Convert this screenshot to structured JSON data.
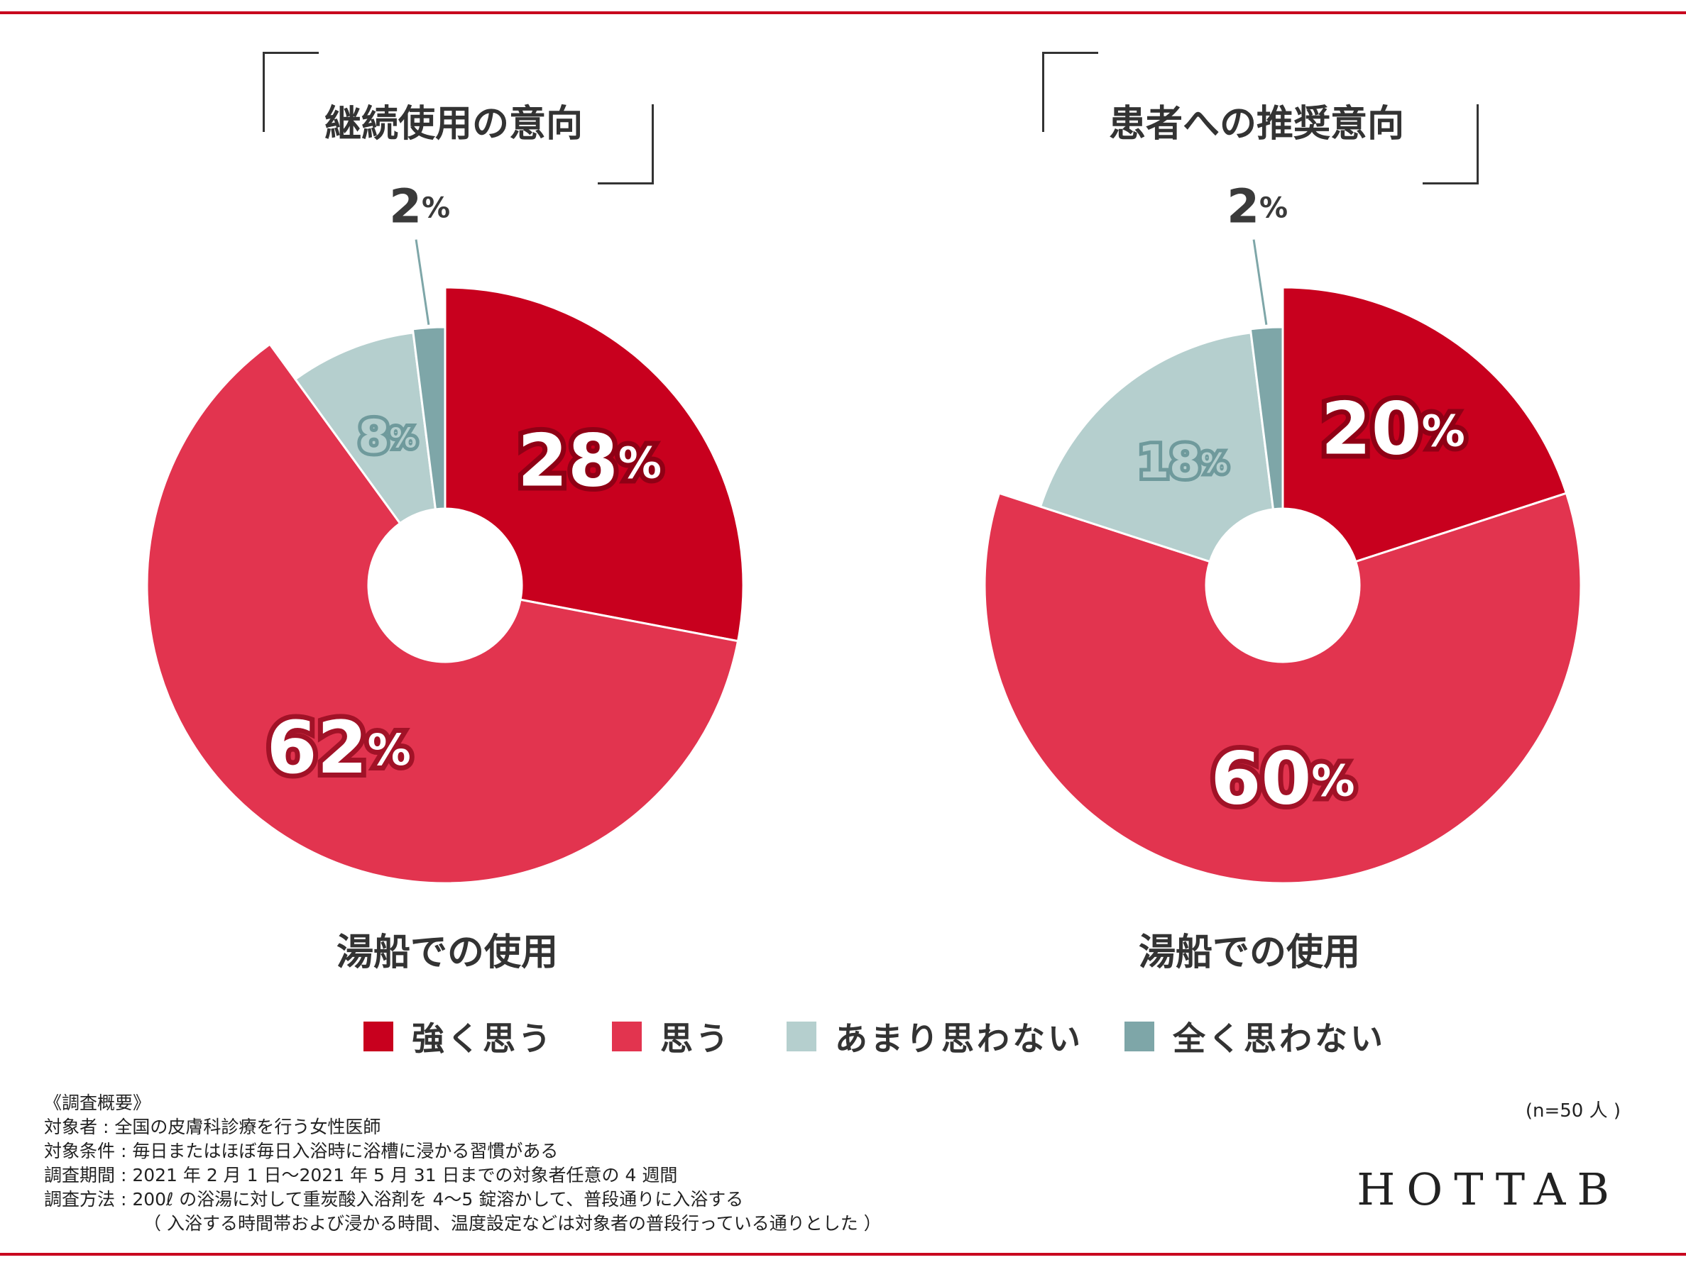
{
  "colors": {
    "accent": "#c8001e",
    "strongly_agree": "#c8001e",
    "agree": "#e2344f",
    "somewhat_disagree": "#b5cfce",
    "strongly_disagree": "#7ea6a8"
  },
  "legend": [
    {
      "label": "強く思う",
      "color": "#c8001e"
    },
    {
      "label": "思う",
      "color": "#e2344f"
    },
    {
      "label": "あまり思わない",
      "color": "#b5cfce"
    },
    {
      "label": "全く思わない",
      "color": "#7ea6a8"
    }
  ],
  "chart_data": [
    {
      "type": "pie",
      "title": "継続使用の意向",
      "subtitle": "湯船での使用",
      "categories": [
        "強く思う",
        "思う",
        "あまり思わない",
        "全く思わない"
      ],
      "values": [
        28,
        62,
        8,
        2
      ],
      "labels": [
        "28%",
        "62%",
        "8%",
        "2%"
      ]
    },
    {
      "type": "pie",
      "title": "患者への推奨意向",
      "subtitle": "湯船での使用",
      "categories": [
        "強く思う",
        "思う",
        "あまり思わない",
        "全く思わない"
      ],
      "values": [
        20,
        60,
        18,
        2
      ],
      "labels": [
        "20%",
        "60%",
        "18%",
        "2%"
      ]
    }
  ],
  "notes": {
    "heading": "《調査概要》",
    "lines": [
      "対象者 : 全国の皮膚科診療を行う女性医師",
      "対象条件 : 毎日またはほぼ毎日入浴時に浴槽に浸かる習慣がある",
      "調査期間 : 2021 年 2 月 1 日〜2021 年 5 月 31 日までの対象者任意の 4 週間",
      "調査方法 : 200ℓ の浴湯に対して重炭酸入浴剤を 4〜5 錠溶かして、普段通りに入浴する",
      "（ 入浴する時間帯および浸かる時間、温度設定などは対象者の普段行っている通りとした ）"
    ]
  },
  "sample_size": "(n=50 人 )",
  "brand": "HOTTAB"
}
